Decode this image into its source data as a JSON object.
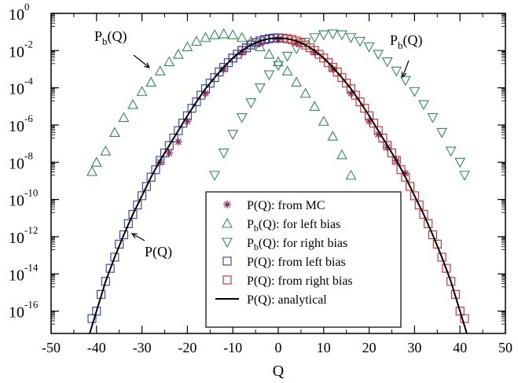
{
  "chart_data": {
    "type": "scatter",
    "xlabel": "Q",
    "ylabel": "",
    "xlim": [
      -50,
      50
    ],
    "ylim_log10": [
      -17.2,
      0
    ],
    "y_scale": "log",
    "x_ticks": [
      "-50",
      "-40",
      "-30",
      "-20",
      "-10",
      "0",
      "10",
      "20",
      "30",
      "40",
      "50"
    ],
    "y_ticks": [
      {
        "base": "10",
        "exp": "0"
      },
      {
        "base": "10",
        "exp": "-2"
      },
      {
        "base": "10",
        "exp": "-4"
      },
      {
        "base": "10",
        "exp": "-6"
      },
      {
        "base": "10",
        "exp": "-8"
      },
      {
        "base": "10",
        "exp": "-10"
      },
      {
        "base": "10",
        "exp": "-12"
      },
      {
        "base": "10",
        "exp": "-14"
      },
      {
        "base": "10",
        "exp": "-16"
      }
    ],
    "legend_position": "bottom-right",
    "series": [
      {
        "name": "P(Q): from MC",
        "marker": "star",
        "color": "#8b2a55",
        "x": [
          -26,
          -24,
          -22,
          -20,
          -16,
          -12,
          -8,
          -4,
          0,
          4,
          8,
          12,
          16,
          20,
          22,
          24,
          26,
          28
        ],
        "log10_y": [
          -8.0,
          -7.5,
          -6.9,
          -5.8,
          -4.3,
          -3.0,
          -2.1,
          -1.6,
          -1.4,
          -1.6,
          -2.1,
          -3.0,
          -4.3,
          -5.8,
          -6.5,
          -7.2,
          -7.9,
          -8.6
        ]
      },
      {
        "name": "P_b(Q): for left bias",
        "marker": "triangle-up",
        "color": "#2e8b57",
        "x": [
          -41,
          -40,
          -38,
          -36,
          -34,
          -32,
          -30,
          -28,
          -26,
          -24,
          -22,
          -20,
          -18,
          -16,
          -14,
          -12,
          -10,
          -8,
          -6,
          -4,
          -2,
          0,
          2,
          4,
          6,
          8,
          10,
          12,
          14,
          16
        ],
        "log10_y": [
          -8.5,
          -8.0,
          -7.4,
          -6.4,
          -5.6,
          -4.9,
          -4.2,
          -3.7,
          -3.1,
          -2.6,
          -2.2,
          -1.8,
          -1.5,
          -1.3,
          -1.15,
          -1.1,
          -1.15,
          -1.3,
          -1.5,
          -1.8,
          -2.2,
          -2.6,
          -3.1,
          -3.7,
          -4.3,
          -5.0,
          -5.8,
          -6.6,
          -7.6,
          -8.7
        ]
      },
      {
        "name": "P_b(Q): for right bias",
        "marker": "triangle-down",
        "color": "#2e8b57",
        "x": [
          -14,
          -12,
          -10,
          -8,
          -6,
          -4,
          -2,
          0,
          2,
          4,
          6,
          8,
          10,
          12,
          14,
          16,
          18,
          20,
          22,
          24,
          26,
          28,
          30,
          32,
          34,
          36,
          38,
          40,
          41
        ],
        "log10_y": [
          -8.7,
          -7.5,
          -6.5,
          -5.6,
          -4.8,
          -4.0,
          -3.3,
          -2.8,
          -2.3,
          -1.9,
          -1.55,
          -1.3,
          -1.15,
          -1.1,
          -1.15,
          -1.3,
          -1.5,
          -1.8,
          -2.2,
          -2.6,
          -3.1,
          -3.6,
          -4.2,
          -4.9,
          -5.6,
          -6.4,
          -7.4,
          -8.0,
          -8.7
        ]
      },
      {
        "name": "P(Q): from left bias",
        "marker": "square",
        "color": "#2f3ba0",
        "x": [
          -41,
          -40,
          -39,
          -38,
          -37,
          -36,
          -35,
          -34,
          -33,
          -32,
          -31,
          -30,
          -29,
          -28,
          -27,
          -26,
          -25,
          -24,
          -23,
          -22,
          -21,
          -20,
          -19,
          -18,
          -17,
          -16,
          -15,
          -14,
          -13,
          -12,
          -11,
          -10,
          -9,
          -8,
          -7,
          -6,
          -5,
          -4,
          -3,
          -2,
          -1,
          0
        ],
        "log10_y": [
          -16.4,
          -16.0,
          -15.1,
          -14.4,
          -13.7,
          -13.1,
          -12.4,
          -11.9,
          -11.3,
          -10.8,
          -10.3,
          -9.8,
          -9.3,
          -8.8,
          -8.4,
          -7.9,
          -7.5,
          -7.1,
          -6.7,
          -6.3,
          -5.9,
          -5.5,
          -5.1,
          -4.75,
          -4.4,
          -4.05,
          -3.75,
          -3.45,
          -3.15,
          -2.9,
          -2.65,
          -2.4,
          -2.2,
          -2.0,
          -1.85,
          -1.7,
          -1.58,
          -1.48,
          -1.41,
          -1.36,
          -1.33,
          -1.32
        ]
      },
      {
        "name": "P(Q): from right bias",
        "marker": "square",
        "color": "#d02525",
        "x": [
          -10,
          -9,
          -8,
          -7,
          -6,
          -5,
          -4,
          -3,
          -2,
          -1,
          0,
          1,
          2,
          3,
          4,
          5,
          6,
          7,
          8,
          9,
          10,
          11,
          12,
          13,
          14,
          15,
          16,
          17,
          18,
          19,
          20,
          21,
          22,
          23,
          24,
          25,
          26,
          27,
          28,
          29,
          30,
          31,
          32,
          33,
          34,
          35,
          36,
          37,
          38,
          39,
          40,
          41
        ],
        "log10_y": [
          -2.4,
          -2.2,
          -2.0,
          -1.85,
          -1.7,
          -1.58,
          -1.48,
          -1.41,
          -1.36,
          -1.33,
          -1.32,
          -1.33,
          -1.36,
          -1.41,
          -1.48,
          -1.58,
          -1.7,
          -1.85,
          -2.0,
          -2.2,
          -2.4,
          -2.65,
          -2.9,
          -3.15,
          -3.45,
          -3.75,
          -4.05,
          -4.4,
          -4.75,
          -5.1,
          -5.5,
          -5.9,
          -6.3,
          -6.7,
          -7.1,
          -7.5,
          -7.9,
          -8.4,
          -8.8,
          -9.3,
          -9.8,
          -10.3,
          -10.8,
          -11.3,
          -11.9,
          -12.4,
          -13.1,
          -13.7,
          -14.4,
          -15.1,
          -16.0,
          -16.4
        ]
      },
      {
        "name": "P(Q): analytical",
        "marker": "line",
        "color": "#000000",
        "x": [
          -42,
          -40,
          -38,
          -36,
          -34,
          -32,
          -30,
          -28,
          -26,
          -24,
          -22,
          -20,
          -18,
          -16,
          -14,
          -12,
          -10,
          -8,
          -6,
          -4,
          -2,
          0,
          2,
          4,
          6,
          8,
          10,
          12,
          14,
          16,
          18,
          20,
          22,
          24,
          26,
          28,
          30,
          32,
          34,
          36,
          38,
          40,
          42
        ],
        "log10_y": [
          -17.6,
          -16.0,
          -14.4,
          -13.1,
          -11.9,
          -10.8,
          -9.8,
          -8.8,
          -7.9,
          -7.1,
          -6.3,
          -5.5,
          -4.75,
          -4.05,
          -3.45,
          -2.9,
          -2.4,
          -2.0,
          -1.7,
          -1.48,
          -1.36,
          -1.32,
          -1.36,
          -1.48,
          -1.7,
          -2.0,
          -2.4,
          -2.9,
          -3.45,
          -4.05,
          -4.75,
          -5.5,
          -6.3,
          -7.1,
          -7.9,
          -8.8,
          -9.8,
          -10.8,
          -11.9,
          -13.1,
          -14.4,
          -16.0,
          -17.6
        ]
      }
    ],
    "annotations": [
      {
        "main": "P",
        "sub": "b",
        "rest": "(Q)",
        "arrow_to_x": -17,
        "arrow_to_log10_y": -2.6
      },
      {
        "main": "P",
        "sub": "b",
        "rest": "(Q)",
        "arrow_to_x": 26,
        "arrow_to_log10_y": -3.0
      },
      {
        "main": "P",
        "sub": "",
        "rest": "(Q)",
        "arrow_to_x": -32,
        "arrow_to_log10_y": -11.7
      }
    ]
  }
}
